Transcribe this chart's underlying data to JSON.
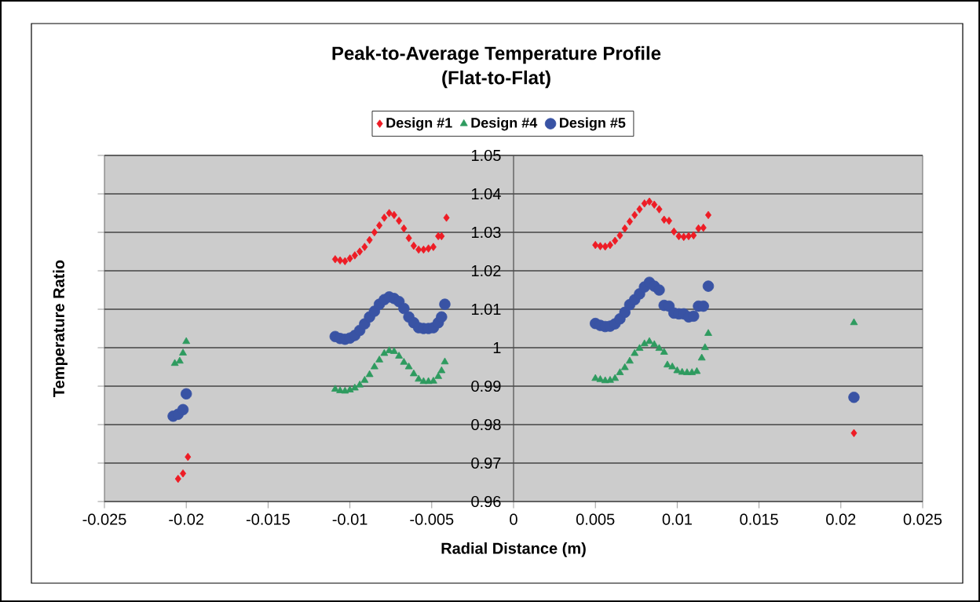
{
  "chart_data": {
    "type": "scatter",
    "title": "Peak-to-Average Temperature Profile",
    "subtitle": "(Flat-to-Flat)",
    "xlabel": "Radial Distance (m)",
    "ylabel": "Temperature Ratio",
    "xlim": [
      -0.025,
      0.025
    ],
    "ylim": [
      0.96,
      1.05
    ],
    "xticks": [
      -0.025,
      -0.02,
      -0.015,
      -0.01,
      -0.005,
      0,
      0.005,
      0.01,
      0.015,
      0.02,
      0.025
    ],
    "yticks": [
      0.96,
      0.97,
      0.98,
      0.99,
      1,
      1.01,
      1.02,
      1.03,
      1.04,
      1.05
    ],
    "grid": "y",
    "legend": "top",
    "series": [
      {
        "name": "Design #1",
        "color": "#ee1c25",
        "marker": "diamond",
        "x": [
          -0.0205,
          -0.0202,
          -0.0199,
          -0.0109,
          -0.0106,
          -0.0103,
          -0.01,
          -0.0097,
          -0.0094,
          -0.0091,
          -0.0088,
          -0.0085,
          -0.0082,
          -0.0079,
          -0.0076,
          -0.0073,
          -0.007,
          -0.0067,
          -0.0064,
          -0.0061,
          -0.0058,
          -0.0055,
          -0.0052,
          -0.0049,
          -0.0046,
          -0.0044,
          -0.0041,
          0.005,
          0.0053,
          0.0056,
          0.0059,
          0.0062,
          0.0065,
          0.0068,
          0.0071,
          0.0074,
          0.0077,
          0.008,
          0.0083,
          0.0086,
          0.0089,
          0.0092,
          0.0095,
          0.0098,
          0.0101,
          0.0104,
          0.0107,
          0.011,
          0.0113,
          0.0116,
          0.0119,
          0.0208
        ],
        "values": [
          0.9659,
          0.9673,
          0.9716,
          1.023,
          1.0227,
          1.0225,
          1.0232,
          1.024,
          1.025,
          1.0262,
          1.028,
          1.03,
          1.0318,
          1.0338,
          1.035,
          1.0345,
          1.033,
          1.031,
          1.0285,
          1.0265,
          1.0255,
          1.0255,
          1.0258,
          1.0262,
          1.029,
          1.029,
          1.0338,
          1.0267,
          1.0264,
          1.0263,
          1.0267,
          1.0278,
          1.0292,
          1.031,
          1.0328,
          1.0345,
          1.036,
          1.0375,
          1.038,
          1.0372,
          1.036,
          1.0333,
          1.033,
          1.0302,
          1.029,
          1.0288,
          1.029,
          1.0292,
          1.031,
          1.0312,
          1.0345,
          0.9778
        ]
      },
      {
        "name": "Design #4",
        "color": "#2e9b5f",
        "marker": "triangle",
        "x": [
          -0.0207,
          -0.0204,
          -0.0202,
          -0.02,
          -0.0109,
          -0.0106,
          -0.0103,
          -0.01,
          -0.0097,
          -0.0094,
          -0.0091,
          -0.0088,
          -0.0085,
          -0.0082,
          -0.0079,
          -0.0076,
          -0.0073,
          -0.007,
          -0.0067,
          -0.0064,
          -0.0061,
          -0.0058,
          -0.0055,
          -0.0052,
          -0.0049,
          -0.0046,
          -0.0044,
          -0.0042,
          0.005,
          0.0053,
          0.0056,
          0.0059,
          0.0062,
          0.0065,
          0.0068,
          0.0071,
          0.0074,
          0.0077,
          0.008,
          0.0083,
          0.0086,
          0.0089,
          0.0092,
          0.0094,
          0.0097,
          0.01,
          0.0103,
          0.0106,
          0.0109,
          0.0112,
          0.0115,
          0.0117,
          0.0119,
          0.0208
        ],
        "values": [
          0.9959,
          0.9965,
          0.9986,
          1.0016,
          0.9892,
          0.9888,
          0.9887,
          0.989,
          0.9895,
          0.9903,
          0.9915,
          0.993,
          0.995,
          0.9968,
          0.9985,
          0.9992,
          0.999,
          0.9978,
          0.9962,
          0.995,
          0.9932,
          0.9918,
          0.9912,
          0.9912,
          0.9913,
          0.9925,
          0.994,
          0.9963,
          0.992,
          0.9917,
          0.9914,
          0.9915,
          0.992,
          0.9935,
          0.9948,
          0.9965,
          0.9985,
          0.9998,
          1.001,
          1.0016,
          1.0008,
          0.9998,
          0.9988,
          0.9955,
          0.995,
          0.994,
          0.9936,
          0.9935,
          0.9935,
          0.9938,
          0.9973,
          1.0,
          1.0037,
          1.0065
        ]
      },
      {
        "name": "Design #5",
        "color": "#3953a4",
        "marker": "circle",
        "x": [
          -0.0208,
          -0.0205,
          -0.0202,
          -0.02,
          -0.0109,
          -0.0106,
          -0.0103,
          -0.01,
          -0.0097,
          -0.0094,
          -0.0091,
          -0.0088,
          -0.0085,
          -0.0082,
          -0.0079,
          -0.0076,
          -0.0073,
          -0.007,
          -0.0067,
          -0.0064,
          -0.0061,
          -0.0058,
          -0.0055,
          -0.0052,
          -0.0049,
          -0.0046,
          -0.0044,
          -0.0042,
          0.005,
          0.0053,
          0.0056,
          0.0059,
          0.0062,
          0.0065,
          0.0068,
          0.0071,
          0.0074,
          0.0077,
          0.008,
          0.0083,
          0.0086,
          0.0089,
          0.0092,
          0.0095,
          0.0098,
          0.0101,
          0.0104,
          0.0107,
          0.011,
          0.0113,
          0.0116,
          0.0119,
          0.0208
        ],
        "values": [
          0.9822,
          0.9827,
          0.9839,
          0.988,
          1.0029,
          1.0024,
          1.0022,
          1.0025,
          1.0032,
          1.0045,
          1.0062,
          1.008,
          1.0095,
          1.0113,
          1.0125,
          1.0132,
          1.0128,
          1.012,
          1.0102,
          1.008,
          1.0065,
          1.0052,
          1.005,
          1.005,
          1.0052,
          1.0065,
          1.008,
          1.0113,
          1.0063,
          1.0058,
          1.0055,
          1.0056,
          1.0062,
          1.0075,
          1.0092,
          1.0112,
          1.0125,
          1.014,
          1.0158,
          1.017,
          1.016,
          1.015,
          1.011,
          1.0108,
          1.009,
          1.0088,
          1.0088,
          1.008,
          1.0082,
          1.0108,
          1.0108,
          1.016,
          0.9871
        ]
      }
    ]
  }
}
